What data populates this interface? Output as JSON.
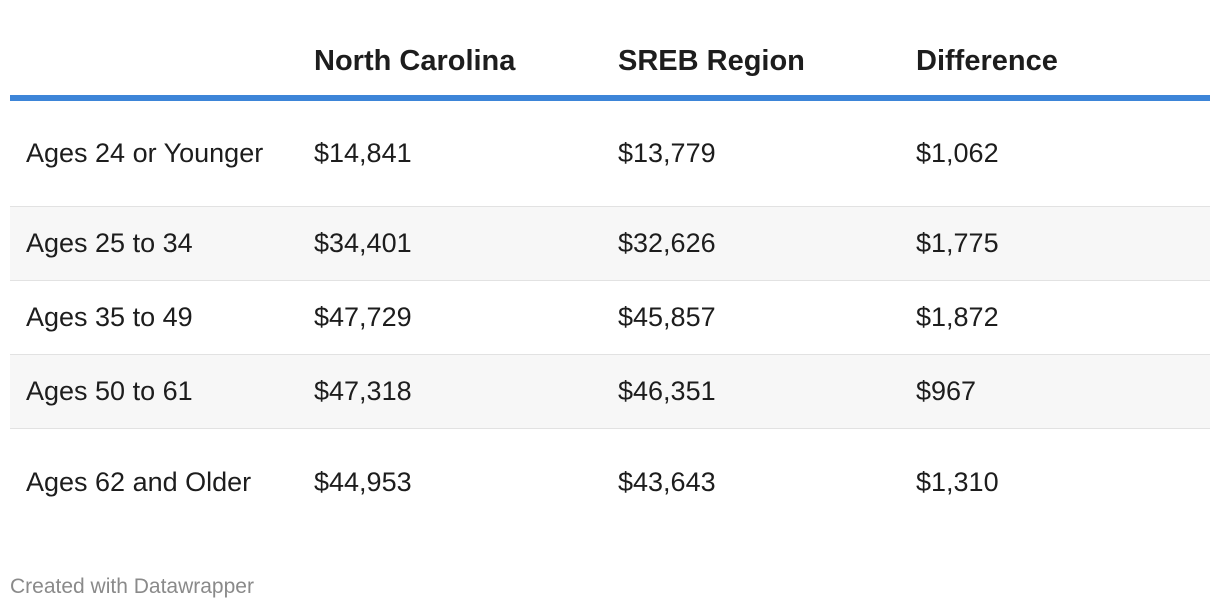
{
  "chart_data": {
    "type": "table",
    "columns": [
      "",
      "North Carolina",
      "SREB Region",
      "Difference"
    ],
    "rows": [
      {
        "label": "Ages 24 or Younger",
        "values": [
          "$14,841",
          "$13,779",
          "$1,062"
        ]
      },
      {
        "label": "Ages 25 to 34",
        "values": [
          "$34,401",
          "$32,626",
          "$1,775"
        ]
      },
      {
        "label": "Ages 35 to 49",
        "values": [
          "$47,729",
          "$45,857",
          "$1,872"
        ]
      },
      {
        "label": "Ages 50 to 61",
        "values": [
          "$47,318",
          "$46,351",
          "$967"
        ]
      },
      {
        "label": "Ages 62 and Older",
        "values": [
          "$44,953",
          "$43,643",
          "$1,310"
        ]
      }
    ],
    "header_rule_color": "#3d85d8",
    "alternate_row_color": "#f7f7f7"
  },
  "footer": {
    "credit": "Created with Datawrapper"
  }
}
